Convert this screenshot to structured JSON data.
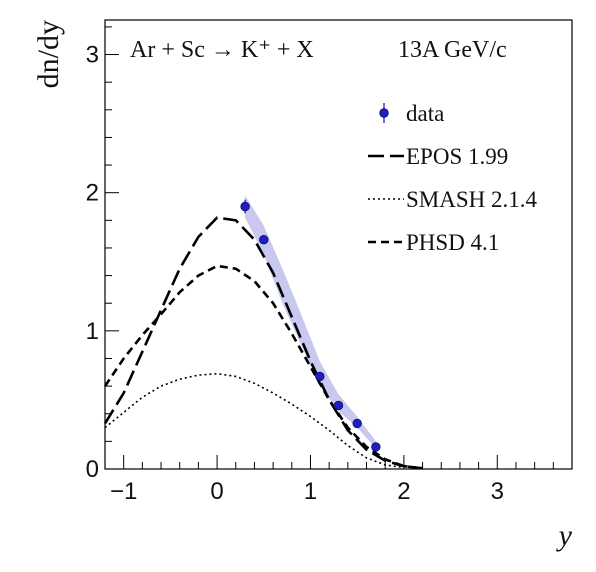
{
  "chart_data": {
    "type": "scatter",
    "title": "Ar + Sc → K⁺ + X",
    "energy_label": "13A GeV/c",
    "xlabel": "y",
    "ylabel": "dn/dy",
    "xlim": [
      -1.2,
      3.8
    ],
    "ylim": [
      0,
      3.25
    ],
    "x_ticks": [
      -1,
      0,
      1,
      2,
      3
    ],
    "y_ticks": [
      0,
      1,
      2,
      3
    ],
    "grid": false,
    "legend_position": "top-right",
    "series": [
      {
        "name": "data",
        "kind": "points",
        "color": "#1f1fbf",
        "x": [
          0.3,
          0.5,
          1.1,
          1.3,
          1.5,
          1.7
        ],
        "y": [
          1.9,
          1.66,
          0.67,
          0.46,
          0.33,
          0.16
        ],
        "yerr": [
          0.05,
          0.03,
          0.03,
          0.02,
          0.02,
          0.02
        ],
        "band_x": [
          0.3,
          0.5,
          0.7,
          0.9,
          1.1,
          1.3,
          1.5,
          1.7
        ],
        "band_low": [
          1.82,
          1.55,
          1.2,
          0.9,
          0.6,
          0.42,
          0.3,
          0.15
        ],
        "band_high": [
          1.98,
          1.76,
          1.45,
          1.12,
          0.78,
          0.54,
          0.38,
          0.2
        ],
        "band_color": "#c8c8f0"
      },
      {
        "name": "EPOS 1.99",
        "kind": "line",
        "dash": "16 6",
        "color": "#000000",
        "x": [
          -1.2,
          -1.0,
          -0.8,
          -0.6,
          -0.4,
          -0.2,
          0.0,
          0.2,
          0.4,
          0.6,
          0.8,
          1.0,
          1.2,
          1.4,
          1.6,
          1.8,
          2.0,
          2.2
        ],
        "y": [
          0.33,
          0.55,
          0.85,
          1.15,
          1.45,
          1.68,
          1.82,
          1.8,
          1.66,
          1.42,
          1.1,
          0.78,
          0.5,
          0.28,
          0.14,
          0.06,
          0.02,
          0.005
        ]
      },
      {
        "name": "SMASH 2.1.4",
        "kind": "line",
        "dash": "2 3",
        "color": "#000000",
        "x": [
          -1.2,
          -1.0,
          -0.8,
          -0.6,
          -0.4,
          -0.2,
          0.0,
          0.2,
          0.4,
          0.6,
          0.8,
          1.0,
          1.2,
          1.4,
          1.6,
          1.8,
          2.0
        ],
        "y": [
          0.3,
          0.41,
          0.52,
          0.6,
          0.65,
          0.68,
          0.69,
          0.67,
          0.62,
          0.55,
          0.47,
          0.38,
          0.28,
          0.17,
          0.08,
          0.03,
          0.01
        ]
      },
      {
        "name": "PHSD 4.1",
        "kind": "line",
        "dash": "8 5",
        "color": "#000000",
        "x": [
          -1.2,
          -1.0,
          -0.8,
          -0.6,
          -0.4,
          -0.2,
          0.0,
          0.2,
          0.4,
          0.6,
          0.8,
          1.0,
          1.2,
          1.4,
          1.6,
          1.8,
          2.0,
          2.2
        ],
        "y": [
          0.6,
          0.8,
          0.97,
          1.12,
          1.28,
          1.4,
          1.47,
          1.45,
          1.36,
          1.2,
          0.98,
          0.74,
          0.5,
          0.3,
          0.16,
          0.07,
          0.02,
          0.005
        ]
      }
    ]
  }
}
